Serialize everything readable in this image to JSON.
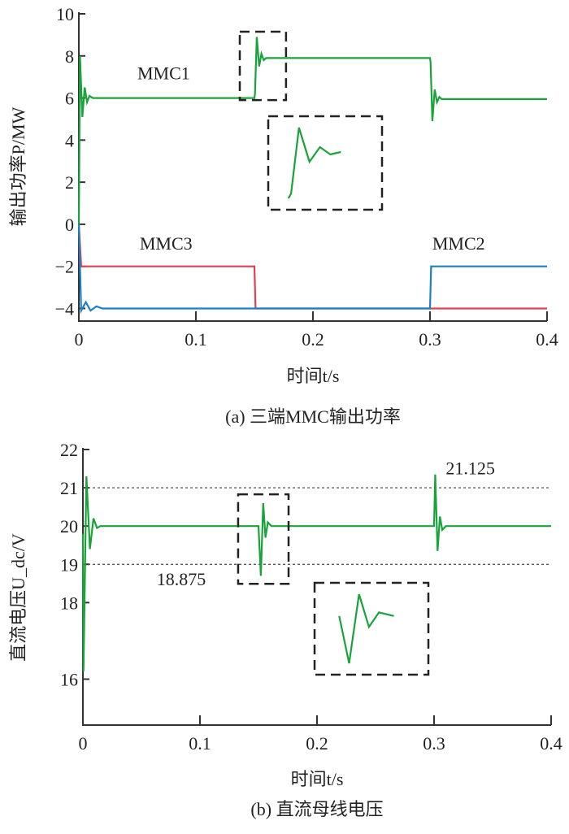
{
  "chart_data": [
    {
      "type": "line",
      "caption": "(a) 三端MMC输出功率",
      "xlabel": "时间t/s",
      "ylabel": "输出功率P/MW",
      "xlim": [
        0,
        0.4
      ],
      "ylim": [
        -4.6,
        10
      ],
      "xticks": [
        "0",
        "0.1",
        "0.2",
        "0.3",
        "0.4"
      ],
      "xtick_values": [
        0,
        0.1,
        0.2,
        0.3,
        0.4
      ],
      "yticks": [
        "10",
        "8",
        "6",
        "4",
        "2",
        "0",
        "−2",
        "−4"
      ],
      "ytick_values": [
        10,
        8,
        6,
        4,
        2,
        0,
        -2,
        -4
      ],
      "grid": false,
      "annotations": [
        {
          "text": "MMC1",
          "x": 0.05,
          "y": 6.9
        },
        {
          "text": "MMC3",
          "x": 0.052,
          "y": -1.2
        },
        {
          "text": "MMC2",
          "x": 0.302,
          "y": -1.2
        }
      ],
      "zoom_window": {
        "t": [
          0.1375,
          0.177
        ],
        "v": [
          5.9,
          9.15
        ],
        "inset_t": [
          0.148,
          0.166
        ]
      },
      "series": [
        {
          "name": "MMC1",
          "color": "#1aa33a",
          "t": [
            0,
            0.001,
            0.003,
            0.005,
            0.007,
            0.009,
            0.012,
            0.15,
            0.1505,
            0.152,
            0.154,
            0.156,
            0.158,
            0.16,
            0.3,
            0.3005,
            0.302,
            0.304,
            0.306,
            0.308,
            0.31,
            0.4
          ],
          "v": [
            0,
            8,
            5.1,
            6.5,
            5.8,
            6.1,
            6,
            6,
            6.2,
            8.9,
            7.5,
            8.1,
            7.8,
            7.9,
            7.9,
            7.7,
            4.9,
            6.4,
            5.8,
            6.05,
            5.95,
            5.95
          ]
        },
        {
          "name": "MMC3",
          "color": "#e04050",
          "t": [
            0,
            0.002,
            0.15,
            0.151,
            0.4
          ],
          "v": [
            0,
            -2,
            -2,
            -4,
            -4
          ]
        },
        {
          "name": "MMC2",
          "color": "#1a80c8",
          "t": [
            0,
            0.002,
            0.006,
            0.01,
            0.015,
            0.02,
            0.3,
            0.301,
            0.4
          ],
          "v": [
            0,
            -4.1,
            -3.7,
            -4.1,
            -3.9,
            -4,
            -4,
            -2,
            -2
          ]
        }
      ]
    },
    {
      "type": "line",
      "caption": "(b) 直流母线电压",
      "xlabel": "时间t/s",
      "ylabel": "直流电压U_dc/V",
      "xlim": [
        0,
        0.4
      ],
      "ylim": [
        14.8,
        22
      ],
      "xticks": [
        "0",
        "0.1",
        "0.2",
        "0.3",
        "0.4"
      ],
      "xtick_values": [
        0,
        0.1,
        0.2,
        0.3,
        0.4
      ],
      "yticks": [
        "22",
        "21",
        "20",
        "19",
        "18",
        "16"
      ],
      "ytick_values": [
        22,
        21,
        20,
        19,
        18,
        16
      ],
      "grid": false,
      "reference_lines": [
        21,
        19
      ],
      "annotations": [
        {
          "text": "21.125",
          "x": 0.31,
          "y": 21.35
        },
        {
          "text": "18.875",
          "x": 0.063,
          "y": 18.45
        }
      ],
      "zoom_window": {
        "t": [
          0.1326,
          0.1757
        ],
        "v": [
          18.49,
          20.83
        ],
        "inset_t": [
          0.147,
          0.166
        ]
      },
      "series": [
        {
          "color": "#1aa33a",
          "t": [
            0,
            0.0005,
            0.003,
            0.006,
            0.009,
            0.012,
            0.015,
            0.15,
            0.152,
            0.154,
            0.156,
            0.158,
            0.161,
            0.3,
            0.301,
            0.303,
            0.305,
            0.307,
            0.31,
            0.4
          ],
          "v": [
            19.8,
            16.2,
            21.3,
            19.4,
            20.2,
            19.95,
            20,
            20,
            18.7,
            20.6,
            19.7,
            20.1,
            20,
            20,
            21.35,
            19.35,
            20.25,
            19.9,
            20,
            20
          ]
        }
      ]
    }
  ]
}
